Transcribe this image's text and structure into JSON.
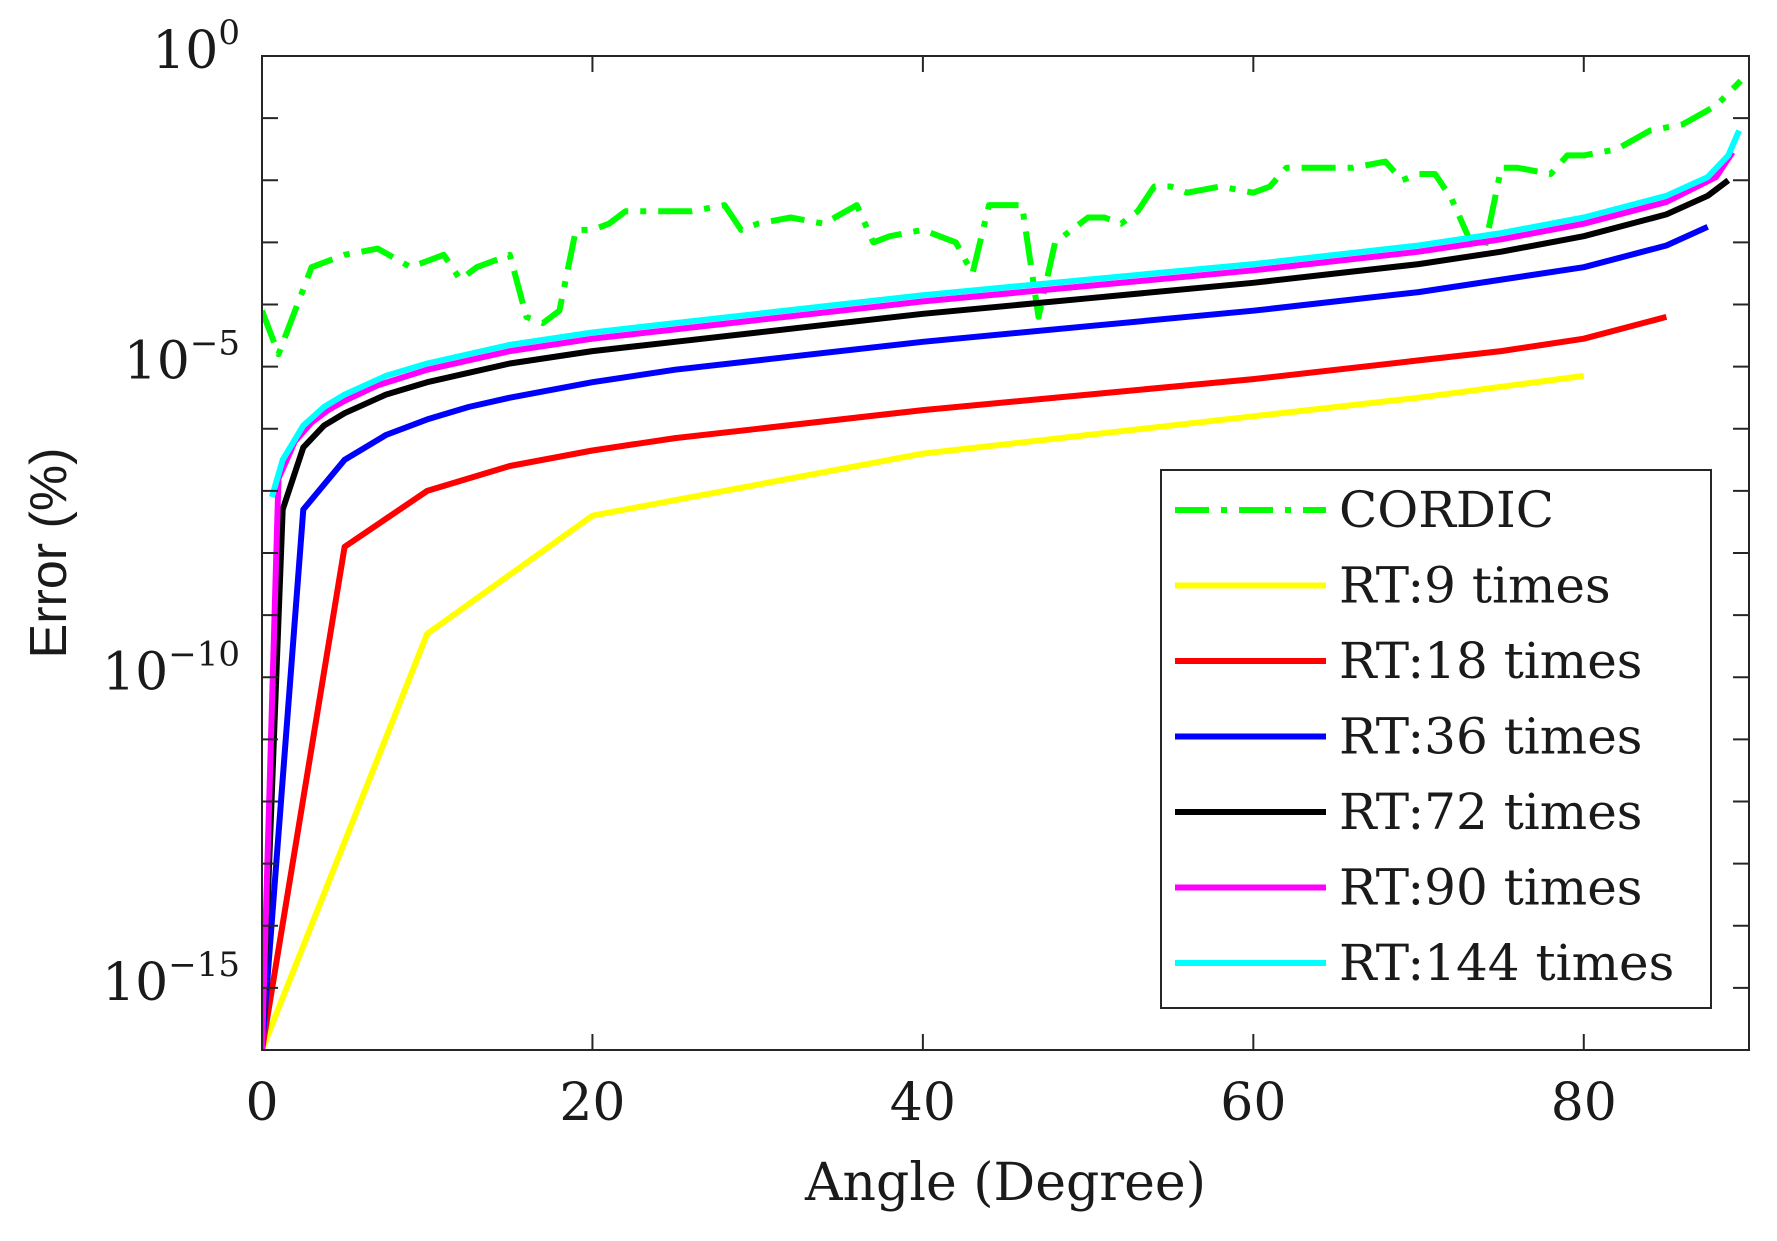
{
  "chart_data": {
    "type": "line",
    "title": "",
    "xlabel": "Angle (Degree)",
    "ylabel": "Error (%)",
    "xlim": [
      0,
      90
    ],
    "ylim": [
      1e-16,
      1
    ],
    "yscale": "log",
    "grid": false,
    "legend_position": "bottom-right",
    "xticks": [
      0,
      20,
      40,
      60,
      80
    ],
    "xtick_labels": [
      "0",
      "20",
      "40",
      "60",
      "80"
    ],
    "yticks": [
      1,
      1e-05,
      1e-10,
      1e-15
    ],
    "ytick_labels": [
      {
        "base": "10",
        "exp": "0"
      },
      {
        "base": "10",
        "exp": "−5"
      },
      {
        "base": "10",
        "exp": "−10"
      },
      {
        "base": "10",
        "exp": "−15"
      }
    ],
    "series": [
      {
        "name": "CORDIC",
        "color": "#00ff00",
        "dash": "dashdot",
        "x": [
          0,
          1,
          3,
          5,
          7,
          9,
          10,
          11,
          12,
          13,
          15,
          16,
          17,
          18,
          19,
          20,
          21,
          22,
          24,
          26,
          28,
          29,
          30,
          32,
          34,
          36,
          37,
          38,
          40,
          41,
          42,
          43,
          44,
          45,
          46,
          47,
          48,
          49,
          50,
          51,
          52,
          53,
          54,
          55,
          56,
          58,
          60,
          61,
          62,
          64,
          66,
          68,
          69,
          70,
          71,
          72,
          73,
          74,
          75,
          76,
          78,
          79,
          80,
          82,
          84,
          86,
          88,
          89.5
        ],
        "y": [
          -4.1,
          -4.8,
          -3.4,
          -3.2,
          -3.1,
          -3.4,
          -3.3,
          -3.2,
          -3.6,
          -3.4,
          -3.2,
          -4.2,
          -4.3,
          -4.1,
          -2.8,
          -2.8,
          -2.7,
          -2.5,
          -2.5,
          -2.5,
          -2.4,
          -2.8,
          -2.7,
          -2.6,
          -2.7,
          -2.4,
          -3.0,
          -2.9,
          -2.8,
          -2.9,
          -3.0,
          -3.5,
          -2.4,
          -2.4,
          -2.4,
          -4.2,
          -3.0,
          -2.8,
          -2.6,
          -2.6,
          -2.7,
          -2.5,
          -2.1,
          -2.1,
          -2.2,
          -2.1,
          -2.2,
          -2.1,
          -1.8,
          -1.8,
          -1.8,
          -1.7,
          -2.0,
          -1.9,
          -1.9,
          -2.3,
          -2.9,
          -3.1,
          -1.8,
          -1.8,
          -1.9,
          -1.6,
          -1.6,
          -1.5,
          -1.2,
          -1.1,
          -0.8,
          -0.4
        ]
      },
      {
        "name": "RT:9 times",
        "color": "#ffff00",
        "dash": "solid",
        "x": [
          0,
          10,
          20,
          40,
          60,
          70,
          80
        ],
        "y": [
          -16,
          -9.3,
          -7.4,
          -6.4,
          -5.8,
          -5.5,
          -5.15
        ]
      },
      {
        "name": "RT:18 times",
        "color": "#ff0000",
        "dash": "solid",
        "x": [
          0,
          5,
          10,
          15,
          20,
          25,
          30,
          40,
          50,
          60,
          70,
          75,
          80,
          85
        ],
        "y": [
          -16,
          -7.9,
          -7.0,
          -6.6,
          -6.35,
          -6.15,
          -6.0,
          -5.7,
          -5.45,
          -5.2,
          -4.9,
          -4.75,
          -4.55,
          -4.2
        ]
      },
      {
        "name": "RT:36 times",
        "color": "#0000ff",
        "dash": "solid",
        "x": [
          0,
          2.5,
          5,
          7.5,
          10,
          12.5,
          15,
          20,
          25,
          30,
          40,
          50,
          60,
          70,
          80,
          85,
          87.5
        ],
        "y": [
          -16,
          -7.3,
          -6.5,
          -6.1,
          -5.85,
          -5.65,
          -5.5,
          -5.25,
          -5.05,
          -4.9,
          -4.6,
          -4.35,
          -4.1,
          -3.8,
          -3.4,
          -3.05,
          -2.75
        ]
      },
      {
        "name": "RT:72 times",
        "color": "#000000",
        "dash": "solid",
        "x": [
          0,
          1.25,
          2.5,
          3.75,
          5,
          7.5,
          10,
          15,
          20,
          25,
          30,
          40,
          50,
          60,
          70,
          75,
          80,
          85,
          87.5,
          88.75
        ],
        "y": [
          -16,
          -7.3,
          -6.3,
          -5.95,
          -5.75,
          -5.45,
          -5.25,
          -4.95,
          -4.75,
          -4.6,
          -4.45,
          -4.15,
          -3.9,
          -3.65,
          -3.35,
          -3.15,
          -2.9,
          -2.55,
          -2.25,
          -2.0
        ]
      },
      {
        "name": "RT:90 times",
        "color": "#ff00ff",
        "dash": "solid",
        "x": [
          0,
          1,
          2,
          3,
          4,
          5,
          7,
          10,
          15,
          20,
          25,
          30,
          40,
          50,
          60,
          70,
          75,
          80,
          85,
          88,
          89
        ],
        "y": [
          -16,
          -6.8,
          -6.2,
          -5.9,
          -5.7,
          -5.55,
          -5.3,
          -5.05,
          -4.75,
          -4.55,
          -4.4,
          -4.25,
          -3.95,
          -3.7,
          -3.45,
          -3.15,
          -2.95,
          -2.7,
          -2.35,
          -1.95,
          -1.55
        ]
      },
      {
        "name": "RT:144 times",
        "color": "#00ffff",
        "dash": "solid",
        "x": [
          0.6,
          1.25,
          2.5,
          3.75,
          5,
          7.5,
          10,
          15,
          20,
          25,
          30,
          40,
          50,
          60,
          70,
          75,
          80,
          85,
          87.5,
          88.75,
          89.4
        ],
        "y": [
          -7.1,
          -6.5,
          -5.95,
          -5.65,
          -5.45,
          -5.15,
          -4.95,
          -4.65,
          -4.45,
          -4.3,
          -4.15,
          -3.85,
          -3.6,
          -3.35,
          -3.05,
          -2.85,
          -2.6,
          -2.25,
          -1.95,
          -1.6,
          -1.2
        ]
      }
    ]
  }
}
